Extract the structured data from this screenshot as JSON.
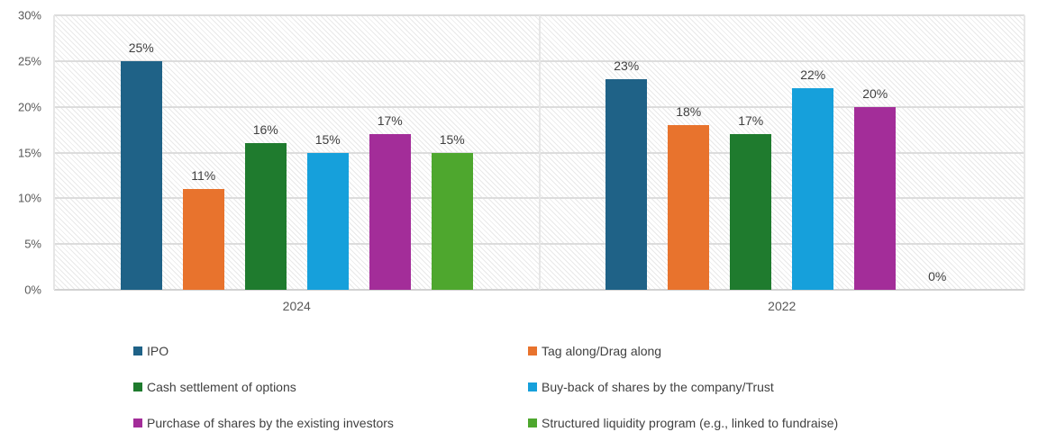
{
  "chart_data": {
    "type": "bar",
    "categories": [
      "2024",
      "2022"
    ],
    "series": [
      {
        "name": "IPO",
        "color": "#1F6287",
        "values": [
          25,
          23
        ],
        "labels": [
          "25%",
          "23%"
        ]
      },
      {
        "name": "Tag along/Drag along",
        "color": "#E8732D",
        "values": [
          11,
          18
        ],
        "labels": [
          "11%",
          "18%"
        ]
      },
      {
        "name": "Cash settlement of options",
        "color": "#1F7B2E",
        "values": [
          16,
          17
        ],
        "labels": [
          "16%",
          "17%"
        ]
      },
      {
        "name": "Buy-back of shares by the company/Trust",
        "color": "#16A0DB",
        "values": [
          15,
          22
        ],
        "labels": [
          "15%",
          "22%"
        ]
      },
      {
        "name": "Purchase of shares by the existing investors",
        "color": "#A32D99",
        "values": [
          17,
          20
        ],
        "labels": [
          "17%",
          "20%"
        ]
      },
      {
        "name": "Structured liquidity program (e.g., linked to fundraise)",
        "color": "#4EA72E",
        "values": [
          15,
          0
        ],
        "labels": [
          "15%",
          "0%"
        ]
      }
    ],
    "y_axis": {
      "ticks": [
        "0%",
        "5%",
        "10%",
        "15%",
        "20%",
        "25%",
        "30%"
      ],
      "min": 0,
      "max": 30,
      "label": ""
    },
    "x_axis": {
      "label": ""
    },
    "title": "",
    "grid": true,
    "legend_position": "bottom",
    "style_colors": {
      "gridline": "#dcdcdc",
      "axis_line": "#d2d2d2",
      "category_separator": "#e6e6e6",
      "tick_text": "#595959",
      "value_label_text": "#3f3f3f",
      "legend_text": "#404040",
      "plot_hatch": "#e9e9e9"
    }
  }
}
